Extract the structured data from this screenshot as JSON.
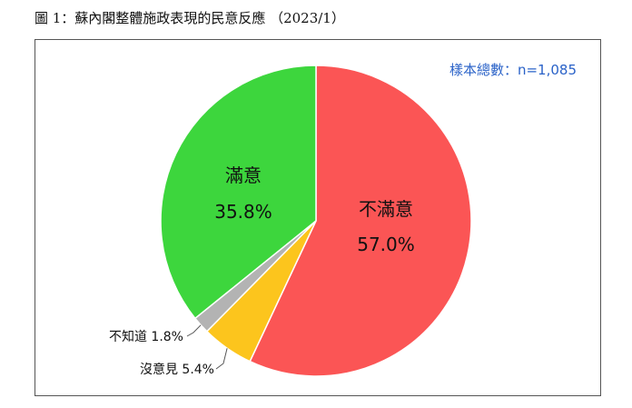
{
  "title": "圖 1：蘇內閣整體施政表現的民意反應 （2023/1）",
  "sample_note": "樣本總數：n=1,085",
  "colors": {
    "dissatisfied": "#fb5555",
    "satisfied": "#3dd63d",
    "no_opinion": "#fcc51d",
    "dont_know": "#b3b3b3"
  },
  "chart_data": {
    "type": "pie",
    "slices": [
      {
        "label": "不滿意",
        "value": 57.0,
        "display": "57.0%",
        "color": "#fb5555"
      },
      {
        "label": "沒意見",
        "value": 5.4,
        "display": "沒意見 5.4%",
        "color": "#fcc51d"
      },
      {
        "label": "不知道",
        "value": 1.8,
        "display": "不知道 1.8%",
        "color": "#b3b3b3"
      },
      {
        "label": "滿意",
        "value": 35.8,
        "display": "35.8%",
        "color": "#3dd63d"
      }
    ]
  }
}
